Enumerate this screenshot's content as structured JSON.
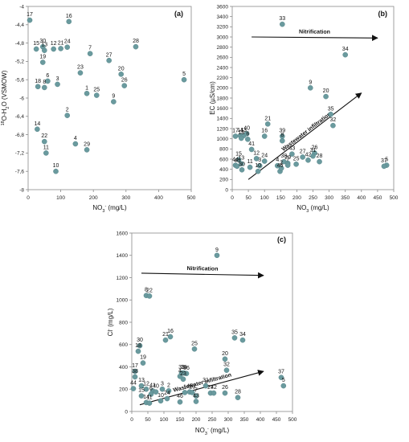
{
  "chart_data": [
    {
      "type": "scatter",
      "panel_label": "(a)",
      "ylabel": "18O-H2O (VSMOW)",
      "ylabel_parts": {
        "sup": "18",
        "main": "O-H",
        "sub": "2",
        "tail": "O (VSMOW)"
      },
      "xlabel": "NO3- (mg/L)",
      "xlabel_parts": {
        "main": "NO",
        "sub": "3",
        "sup": "-",
        "tail": " (mg/L)"
      },
      "xlim": [
        0,
        500
      ],
      "ylim": [
        -8,
        -4
      ],
      "xticks": [
        "0",
        "100",
        "200",
        "300",
        "400",
        "500"
      ],
      "yticks": [
        "-4",
        "-4,4",
        "-4,8",
        "-5,2",
        "-5,6",
        "-6",
        "-6,4",
        "-6,8",
        "-7,2",
        "-7,6",
        "-8"
      ],
      "ytick_values": [
        -4,
        -4.4,
        -4.8,
        -5.2,
        -5.6,
        -6,
        -6.4,
        -6.8,
        -7.2,
        -7.6,
        -8
      ],
      "marker_color": "#6a9a9e",
      "points": [
        {
          "label": "17",
          "x": 5,
          "y": -4.3
        },
        {
          "label": "16",
          "x": 125,
          "y": -4.33
        },
        {
          "label": "15",
          "x": 25,
          "y": -4.93
        },
        {
          "label": "30",
          "x": 45,
          "y": -4.88
        },
        {
          "label": "13",
          "x": 50,
          "y": -4.96
        },
        {
          "label": "12",
          "x": 78,
          "y": -4.93
        },
        {
          "label": "21",
          "x": 100,
          "y": -4.92
        },
        {
          "label": "24",
          "x": 120,
          "y": -4.89
        },
        {
          "label": "7",
          "x": 190,
          "y": -5.03
        },
        {
          "label": "27",
          "x": 248,
          "y": -5.18
        },
        {
          "label": "28",
          "x": 330,
          "y": -4.88
        },
        {
          "label": "19",
          "x": 45,
          "y": -5.22
        },
        {
          "label": "23",
          "x": 160,
          "y": -5.45
        },
        {
          "label": "20",
          "x": 285,
          "y": -5.48
        },
        {
          "label": "5",
          "x": 478,
          "y": -5.6
        },
        {
          "label": "18",
          "x": 30,
          "y": -5.75
        },
        {
          "label": "6",
          "x": 60,
          "y": -5.63
        },
        {
          "label": "3",
          "x": 90,
          "y": -5.7
        },
        {
          "label": "8",
          "x": 50,
          "y": -5.77
        },
        {
          "label": "26",
          "x": 295,
          "y": -5.73
        },
        {
          "label": "1",
          "x": 180,
          "y": -5.9
        },
        {
          "label": "25",
          "x": 210,
          "y": -5.94
        },
        {
          "label": "9",
          "x": 262,
          "y": -6.08
        },
        {
          "label": "2",
          "x": 120,
          "y": -6.38
        },
        {
          "label": "14",
          "x": 28,
          "y": -6.68
        },
        {
          "label": "22",
          "x": 50,
          "y": -6.95
        },
        {
          "label": "4",
          "x": 145,
          "y": -7.0
        },
        {
          "label": "29",
          "x": 180,
          "y": -7.13
        },
        {
          "label": "11",
          "x": 55,
          "y": -7.2
        },
        {
          "label": "10",
          "x": 85,
          "y": -7.6
        }
      ]
    },
    {
      "type": "scatter",
      "panel_label": "(b)",
      "ylabel": "EC (µS/cm)",
      "ylabel_parts": {
        "main": "EC (µS/cm)"
      },
      "xlabel": "NO3 (mg/L)",
      "xlabel_parts": {
        "main": "NO",
        "sub": "3",
        "sup": "",
        "tail": " (mg/L)"
      },
      "xlim": [
        0,
        500
      ],
      "ylim": [
        0,
        3600
      ],
      "xticks": [
        "0",
        "50",
        "100",
        "150",
        "200",
        "250",
        "300",
        "350",
        "400",
        "450",
        "500"
      ],
      "yticks": [
        "0",
        "200",
        "400",
        "600",
        "800",
        "1000",
        "1200",
        "1400",
        "1600",
        "1800",
        "2000",
        "2200",
        "2400",
        "2600",
        "2800",
        "3000",
        "3200",
        "3400",
        "3600"
      ],
      "marker_color": "#6a9a9e",
      "annotations": [
        {
          "text": "Nitrification",
          "from": [
            60,
            3000
          ],
          "to": [
            450,
            2980
          ]
        },
        {
          "text": "Wastewater infiltration",
          "from": [
            50,
            200
          ],
          "to": [
            400,
            1900
          ]
        }
      ],
      "points": [
        {
          "label": "33",
          "x": 155,
          "y": 3250
        },
        {
          "label": "34",
          "x": 350,
          "y": 2650
        },
        {
          "label": "9",
          "x": 242,
          "y": 2000
        },
        {
          "label": "20",
          "x": 290,
          "y": 1830
        },
        {
          "label": "21",
          "x": 110,
          "y": 1290
        },
        {
          "label": "35",
          "x": 305,
          "y": 1480
        },
        {
          "label": "32",
          "x": 312,
          "y": 1260
        },
        {
          "label": "17",
          "x": 10,
          "y": 1050
        },
        {
          "label": "14",
          "x": 25,
          "y": 1060
        },
        {
          "label": "13",
          "x": 35,
          "y": 1060
        },
        {
          "label": "40",
          "x": 45,
          "y": 1100
        },
        {
          "label": "18",
          "x": 28,
          "y": 1010
        },
        {
          "label": "6",
          "x": 48,
          "y": 990
        },
        {
          "label": "16",
          "x": 100,
          "y": 1050
        },
        {
          "label": "39",
          "x": 155,
          "y": 1050
        },
        {
          "label": "8",
          "x": 155,
          "y": 960
        },
        {
          "label": "43",
          "x": 185,
          "y": 700
        },
        {
          "label": "41",
          "x": 60,
          "y": 790
        },
        {
          "label": "12",
          "x": 75,
          "y": 610
        },
        {
          "label": "15",
          "x": 20,
          "y": 590
        },
        {
          "label": "13",
          "x": 28,
          "y": 510
        },
        {
          "label": "24",
          "x": 100,
          "y": 560
        },
        {
          "label": "44",
          "x": 10,
          "y": 480
        },
        {
          "label": "45",
          "x": 15,
          "y": 460
        },
        {
          "label": "30",
          "x": 30,
          "y": 390
        },
        {
          "label": "11",
          "x": 55,
          "y": 440
        },
        {
          "label": "3",
          "x": 85,
          "y": 470
        },
        {
          "label": "10",
          "x": 80,
          "y": 360
        },
        {
          "label": "4",
          "x": 140,
          "y": 470
        },
        {
          "label": "38",
          "x": 160,
          "y": 550
        },
        {
          "label": "29",
          "x": 172,
          "y": 520
        },
        {
          "label": "25",
          "x": 198,
          "y": 500
        },
        {
          "label": "42",
          "x": 235,
          "y": 580
        },
        {
          "label": "26",
          "x": 255,
          "y": 720
        },
        {
          "label": "31",
          "x": 250,
          "y": 660
        },
        {
          "label": "27",
          "x": 218,
          "y": 640
        },
        {
          "label": "28",
          "x": 270,
          "y": 550
        },
        {
          "label": "46",
          "x": 148,
          "y": 360
        },
        {
          "label": "2",
          "x": 152,
          "y": 420
        },
        {
          "label": "7",
          "x": 172,
          "y": 480
        },
        {
          "label": "5",
          "x": 478,
          "y": 480
        },
        {
          "label": "37",
          "x": 470,
          "y": 460
        }
      ]
    },
    {
      "type": "scatter",
      "panel_label": "(c)",
      "ylabel": "Cl- (mg/L)",
      "ylabel_parts": {
        "main": "Cl",
        "sup": "-",
        "tail": " (mg/L)"
      },
      "xlabel": "NO3- (mg/L)",
      "xlabel_parts": {
        "main": "NO",
        "sub": "3",
        "sup": "-",
        "tail": " (mg/L)"
      },
      "xlim": [
        0,
        500
      ],
      "ylim": [
        0,
        1600
      ],
      "xticks": [
        "0",
        "50",
        "100",
        "150",
        "200",
        "250",
        "300",
        "350",
        "400",
        "450",
        "500"
      ],
      "yticks": [
        "0",
        "200",
        "400",
        "600",
        "800",
        "1000",
        "1200",
        "1400",
        "1600"
      ],
      "marker_color": "#6a9a9e",
      "annotations": [
        {
          "text": "Nitrification",
          "from": [
            30,
            1240
          ],
          "to": [
            410,
            1220
          ]
        },
        {
          "text": "Wastewater infiltration",
          "from": [
            25,
            60
          ],
          "to": [
            410,
            360
          ]
        }
      ],
      "points": [
        {
          "label": "9",
          "x": 265,
          "y": 1400
        },
        {
          "label": "8",
          "x": 45,
          "y": 1040
        },
        {
          "label": "22",
          "x": 55,
          "y": 1035
        },
        {
          "label": "30",
          "x": 25,
          "y": 590
        },
        {
          "label": "21",
          "x": 105,
          "y": 640
        },
        {
          "label": "16",
          "x": 120,
          "y": 670
        },
        {
          "label": "35",
          "x": 320,
          "y": 660
        },
        {
          "label": "34",
          "x": 345,
          "y": 640
        },
        {
          "label": "18",
          "x": 20,
          "y": 540
        },
        {
          "label": "25",
          "x": 195,
          "y": 560
        },
        {
          "label": "19",
          "x": 35,
          "y": 435
        },
        {
          "label": "20",
          "x": 290,
          "y": 470
        },
        {
          "label": "17",
          "x": 10,
          "y": 360
        },
        {
          "label": "38",
          "x": 10,
          "y": 310
        },
        {
          "label": "32",
          "x": 295,
          "y": 370
        },
        {
          "label": "33",
          "x": 155,
          "y": 345
        },
        {
          "label": "39",
          "x": 162,
          "y": 345
        },
        {
          "label": "36",
          "x": 170,
          "y": 340
        },
        {
          "label": "23",
          "x": 160,
          "y": 290
        },
        {
          "label": "4",
          "x": 150,
          "y": 315
        },
        {
          "label": "37",
          "x": 465,
          "y": 305
        },
        {
          "label": "5",
          "x": 472,
          "y": 230
        },
        {
          "label": "44",
          "x": 5,
          "y": 205
        },
        {
          "label": "13",
          "x": 30,
          "y": 230
        },
        {
          "label": "12",
          "x": 45,
          "y": 200
        },
        {
          "label": "3",
          "x": 95,
          "y": 200
        },
        {
          "label": "2",
          "x": 115,
          "y": 185
        },
        {
          "label": "41",
          "x": 65,
          "y": 185
        },
        {
          "label": "40",
          "x": 75,
          "y": 175
        },
        {
          "label": "15",
          "x": 30,
          "y": 140
        },
        {
          "label": "6",
          "x": 60,
          "y": 155
        },
        {
          "label": "45",
          "x": 180,
          "y": 175
        },
        {
          "label": "29",
          "x": 188,
          "y": 170
        },
        {
          "label": "31",
          "x": 230,
          "y": 230
        },
        {
          "label": "27",
          "x": 245,
          "y": 165
        },
        {
          "label": "42",
          "x": 255,
          "y": 165
        },
        {
          "label": "26",
          "x": 290,
          "y": 165
        },
        {
          "label": "28",
          "x": 330,
          "y": 125
        },
        {
          "label": "7",
          "x": 200,
          "y": 140
        },
        {
          "label": "1",
          "x": 165,
          "y": 170
        },
        {
          "label": "14",
          "x": 45,
          "y": 80
        },
        {
          "label": "11",
          "x": 55,
          "y": 75
        },
        {
          "label": "10",
          "x": 90,
          "y": 95
        },
        {
          "label": "24",
          "x": 110,
          "y": 115
        },
        {
          "label": "46",
          "x": 150,
          "y": 85
        },
        {
          "label": "43",
          "x": 200,
          "y": 90
        }
      ]
    }
  ]
}
